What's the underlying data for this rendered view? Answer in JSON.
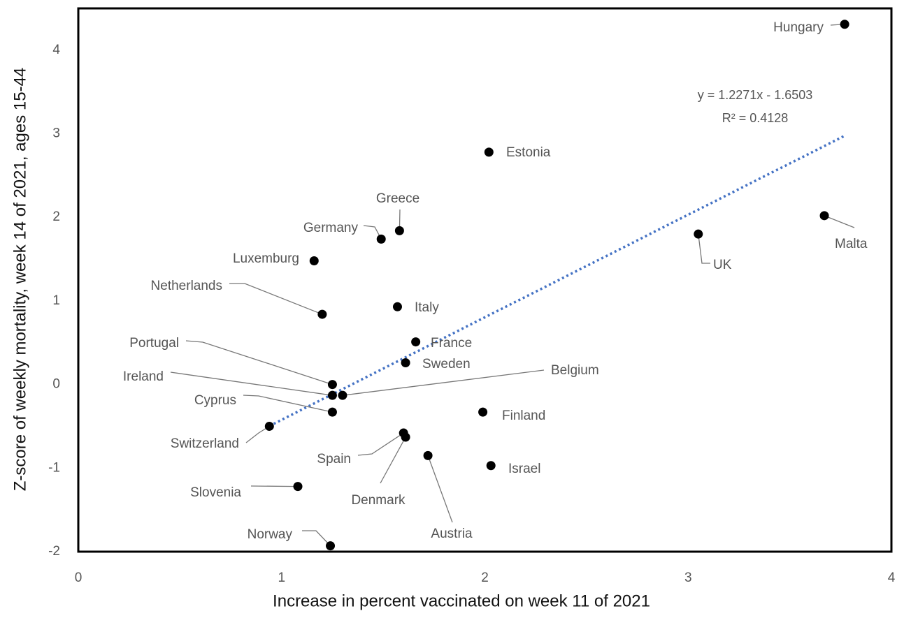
{
  "chart_data": {
    "type": "scatter",
    "x_label": "Increase in percent vaccinated on week 11 of 2021",
    "y_label": "Z-score of weekly mortality, week 14 of 2021, ages 15-44",
    "point_labels": [
      "Hungary",
      "Estonia",
      "Greece",
      "Germany",
      "Luxemburg",
      "Netherlands",
      "Italy",
      "France",
      "Sweden",
      "Portugal",
      "Ireland",
      "Belgium",
      "Cyprus",
      "Switzerland",
      "Spain",
      "Denmark",
      "Austria",
      "Finland",
      "Israel",
      "Slovenia",
      "Norway",
      "UK",
      "Malta"
    ],
    "x": [
      3.77,
      2.02,
      1.58,
      1.49,
      1.16,
      1.2,
      1.57,
      1.66,
      1.61,
      1.25,
      1.25,
      1.3,
      1.25,
      0.94,
      1.6,
      1.61,
      1.72,
      1.99,
      2.03,
      1.08,
      1.24,
      3.05,
      3.67
    ],
    "values": [
      4.31,
      2.78,
      1.84,
      1.74,
      1.48,
      0.84,
      0.93,
      0.51,
      0.26,
      0.0,
      -0.13,
      -0.13,
      -0.33,
      -0.5,
      -0.58,
      -0.63,
      -0.85,
      -0.33,
      -0.97,
      -1.22,
      -1.93,
      1.8,
      2.02
    ],
    "color": "#000000",
    "xlim": [
      0,
      4
    ],
    "ylim": [
      -2,
      4.5
    ],
    "xticks": [
      0,
      1,
      2,
      3,
      4
    ],
    "yticks": [
      -2,
      -1,
      0,
      1,
      2,
      3,
      4
    ],
    "trendline": {
      "slope": 1.2271,
      "intercept": -1.6503,
      "color": "#4472c4",
      "equation": "y = 1.2271x - 1.6503",
      "r_squared": "R² = 0.4128"
    }
  }
}
